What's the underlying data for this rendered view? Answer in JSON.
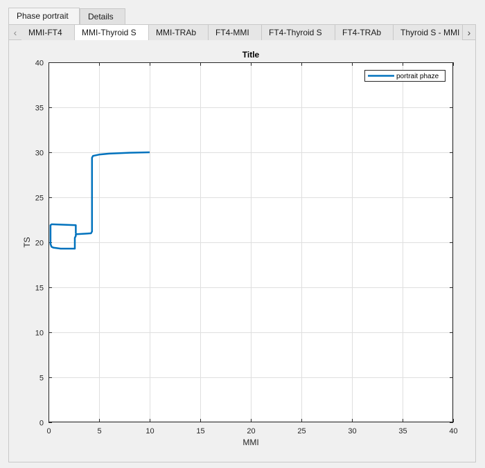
{
  "tabs_outer": [
    {
      "label": "Phase portrait",
      "active": true
    },
    {
      "label": "Details",
      "active": false
    }
  ],
  "tabs_inner": [
    {
      "label": "MMI-FT4",
      "active": false
    },
    {
      "label": "MMI-Thyroid S",
      "active": true
    },
    {
      "label": "MMI-TRAb",
      "active": false
    },
    {
      "label": "FT4-MMI",
      "active": false
    },
    {
      "label": "FT4-Thyroid S",
      "active": false
    },
    {
      "label": "FT4-TRAb",
      "active": false
    },
    {
      "label": "Thyroid S - MMI",
      "active": false
    }
  ],
  "icons": {
    "scroll_left": "chevron-left-icon",
    "scroll_right": "chevron-right-icon"
  },
  "chart_data": {
    "type": "line",
    "title": "Title",
    "xlabel": "MMI",
    "ylabel": "TS",
    "xlim": [
      0,
      40
    ],
    "ylim": [
      0,
      40
    ],
    "xticks": [
      0,
      5,
      10,
      15,
      20,
      25,
      30,
      35,
      40
    ],
    "yticks": [
      0,
      5,
      10,
      15,
      20,
      25,
      30,
      35,
      40
    ],
    "grid": true,
    "legend_position": "top-right",
    "color": "#0072bd",
    "series": [
      {
        "name": "portrait phaze",
        "x": [
          10,
          8,
          6,
          5,
          4.4,
          4.3,
          4.3,
          4.2,
          4.2,
          2.8,
          2.7,
          2.7,
          2.6,
          2.6,
          1.2,
          0.5,
          0.3,
          0.2,
          0.2,
          0.2,
          0.3,
          0.3,
          0.4,
          2.7,
          2.7
        ],
        "y": [
          30,
          29.95,
          29.85,
          29.75,
          29.6,
          29.4,
          21.2,
          21.0,
          21.0,
          20.9,
          20.9,
          20.7,
          20.5,
          19.3,
          19.3,
          19.4,
          19.5,
          19.8,
          21.0,
          21.9,
          22.0,
          22.0,
          22.0,
          21.9,
          21.0
        ]
      }
    ]
  }
}
